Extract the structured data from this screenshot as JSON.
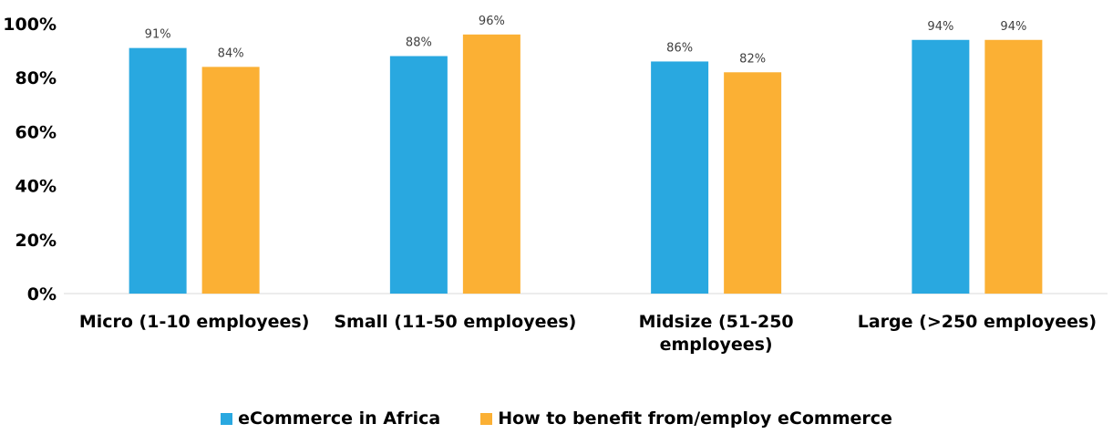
{
  "chart_data": {
    "type": "bar",
    "title": "",
    "xlabel": "",
    "ylabel": "",
    "categories": [
      [
        "Micro (1-10 employees)"
      ],
      [
        "Small (11-50 employees)"
      ],
      [
        "Midsize (51-250",
        "employees)"
      ],
      [
        "Large (>250 employees)"
      ]
    ],
    "series": [
      {
        "name": "eCommerce in Africa",
        "color": "#29A8E0",
        "values": [
          91,
          88,
          86,
          94
        ],
        "labels": [
          "91%",
          "88%",
          "86%",
          "94%"
        ]
      },
      {
        "name": "How to benefit from/employ eCommerce",
        "color": "#FBB034",
        "values": [
          84,
          96,
          82,
          94
        ],
        "labels": [
          "84%",
          "96%",
          "82%",
          "94%"
        ]
      }
    ],
    "yticks": [
      "0%",
      "20%",
      "40%",
      "60%",
      "80%",
      "100%"
    ],
    "ylim": [
      0,
      100
    ],
    "grid": false,
    "legend_position": "bottom"
  }
}
